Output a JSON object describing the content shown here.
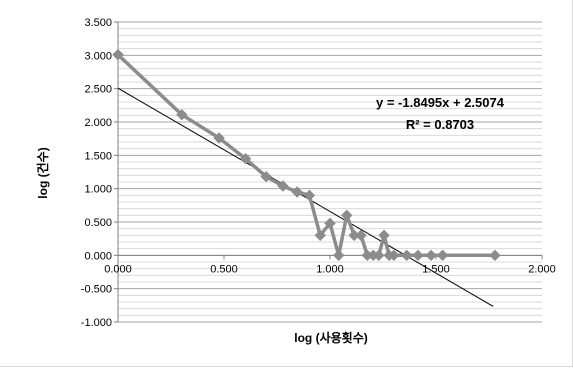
{
  "chart_data": {
    "type": "line",
    "title": "",
    "xlabel": "log (사용횟수)",
    "ylabel": "log (건수)",
    "xlim": [
      0,
      2
    ],
    "ylim": [
      -1,
      3.5
    ],
    "xticks": [
      "0.000",
      "0.500",
      "1.000",
      "1.500",
      "2.000"
    ],
    "yticks": [
      "3.500",
      "3.000",
      "2.500",
      "2.000",
      "1.500",
      "1.000",
      "0.500",
      "0.000",
      "-0.500",
      "-1.000"
    ],
    "grid": true,
    "series": [
      {
        "color": "#8c8c8c",
        "marker": "diamond",
        "x": [
          0.0,
          0.301,
          0.477,
          0.602,
          0.699,
          0.778,
          0.845,
          0.903,
          0.954,
          1.0,
          1.041,
          1.079,
          1.114,
          1.146,
          1.176,
          1.204,
          1.23,
          1.255,
          1.279,
          1.301,
          1.362,
          1.415,
          1.477,
          1.531,
          1.778
        ],
        "y": [
          3.01,
          2.11,
          1.76,
          1.45,
          1.18,
          1.04,
          0.95,
          0.9,
          0.3,
          0.48,
          0.0,
          0.6,
          0.3,
          0.3,
          0.0,
          0.0,
          0.0,
          0.3,
          0.0,
          0.0,
          0.0,
          0.0,
          0.0,
          0.0,
          0.0
        ]
      }
    ],
    "trendline": {
      "type": "linear",
      "slope": -1.8495,
      "intercept": 2.5074,
      "x_range": [
        0,
        1.77
      ],
      "color": "#000000",
      "equation_label": "y = -1.8495x + 2.5074",
      "r2_label": "R² = 0.8703"
    }
  }
}
